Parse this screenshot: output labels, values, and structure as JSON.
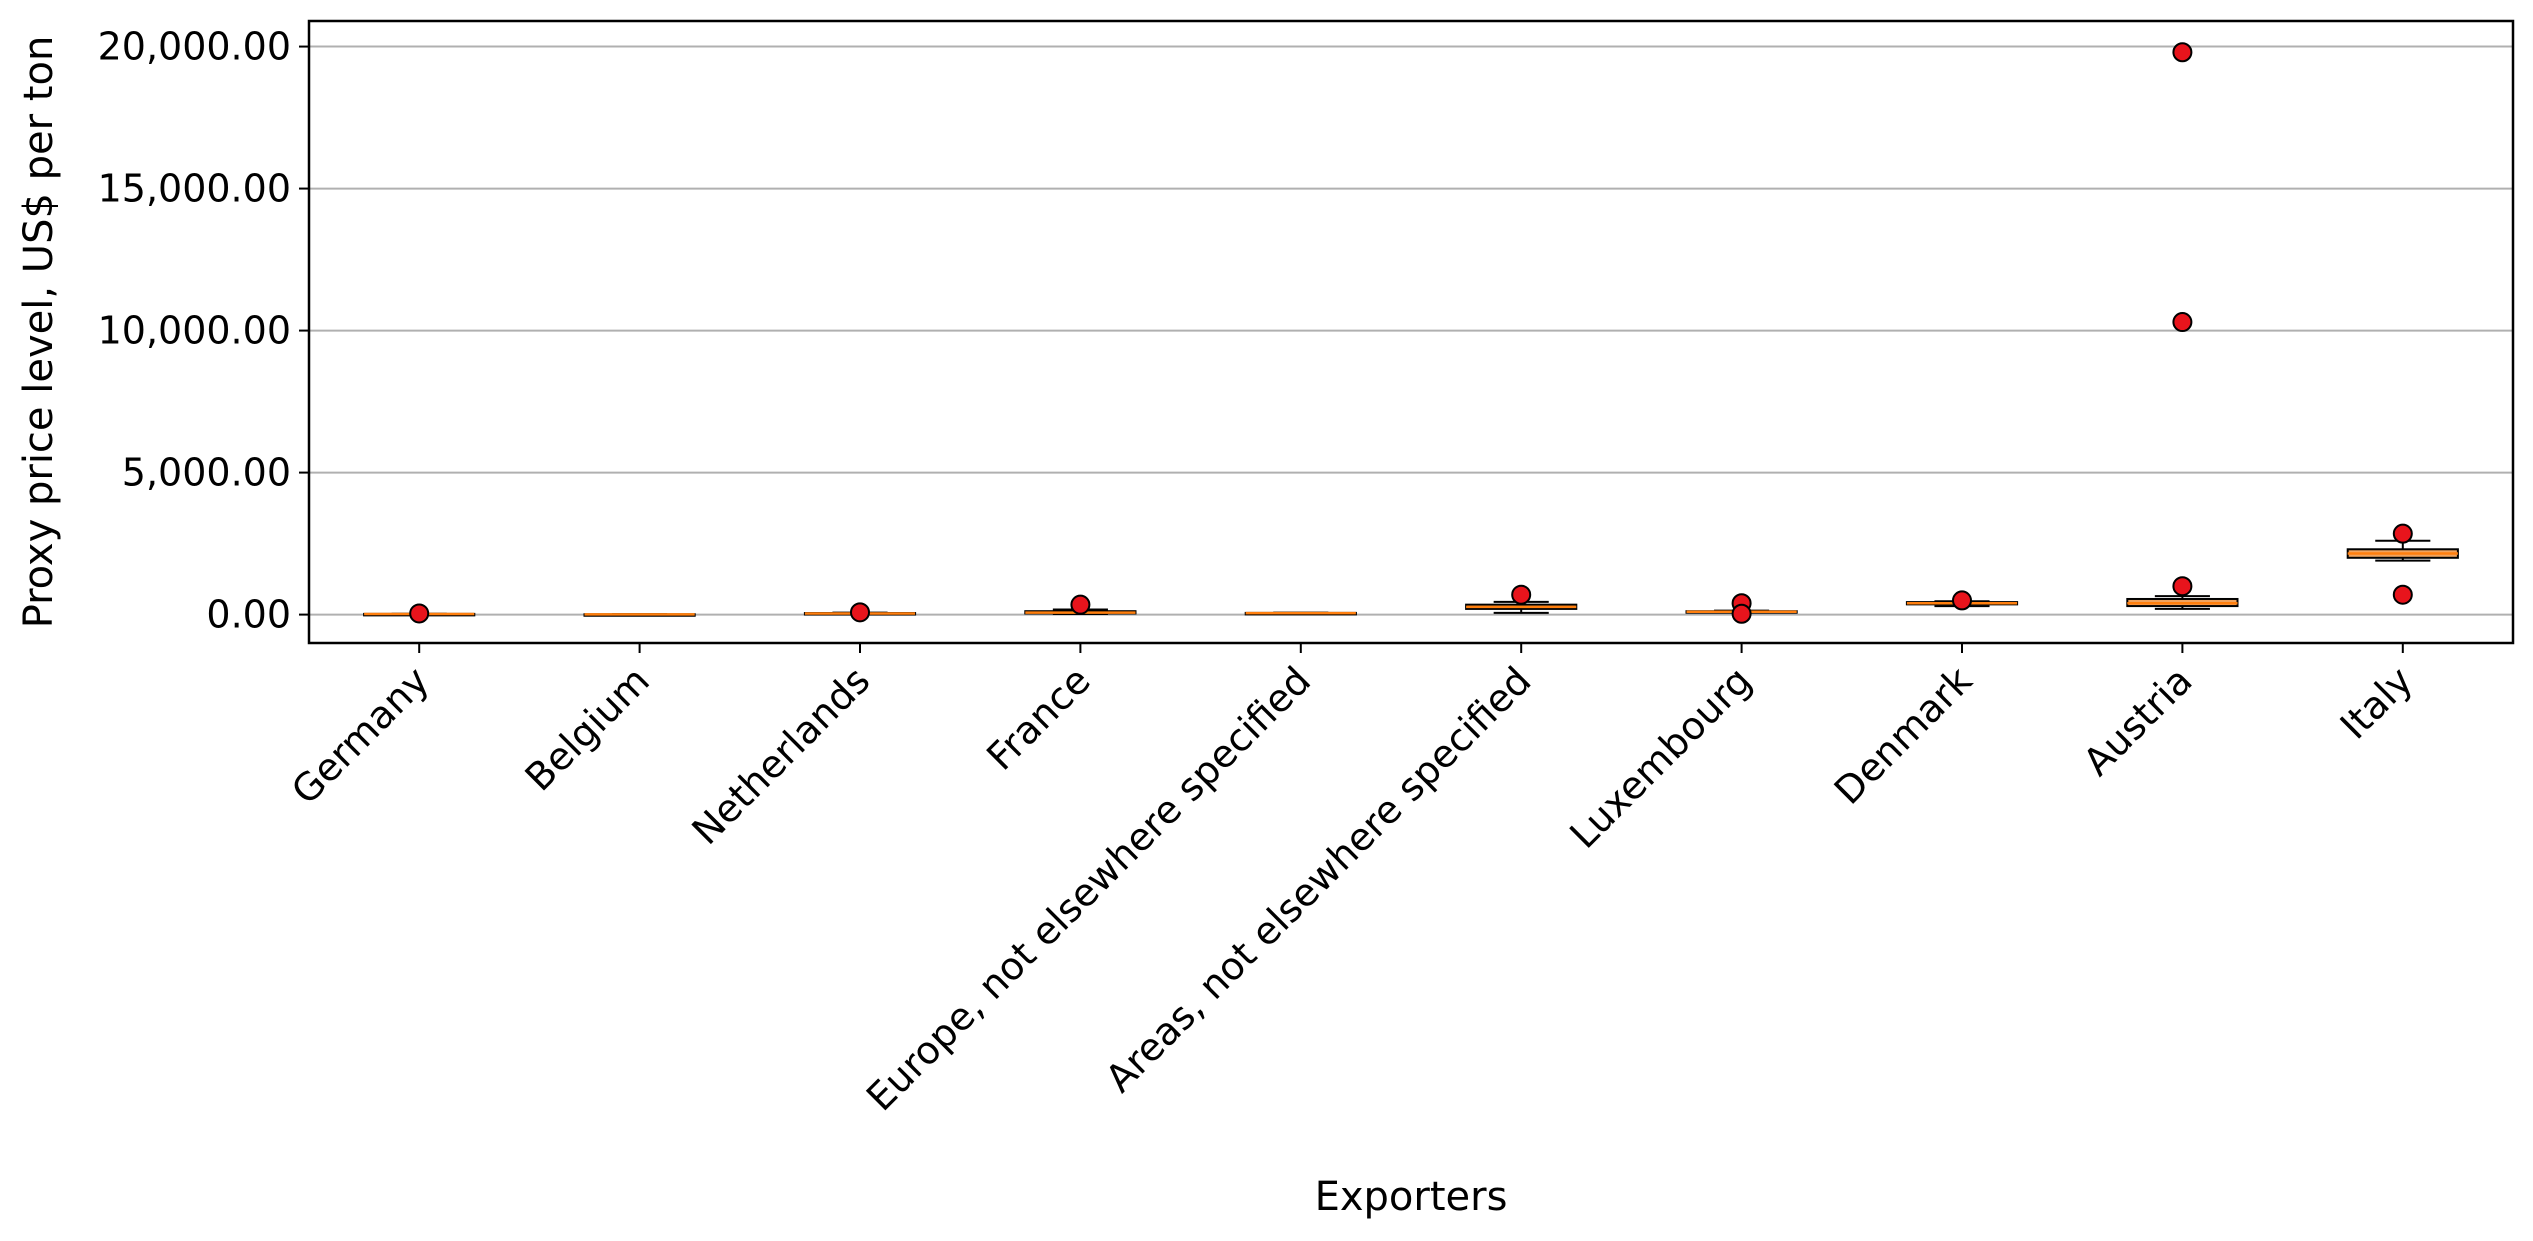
{
  "chart_data": {
    "type": "boxplot",
    "title": "",
    "xlabel": "Exporters",
    "ylabel": "Proxy price level, US$ per ton",
    "ylim": [
      -1000,
      20900
    ],
    "yticks": [
      0,
      5000,
      10000,
      15000,
      20000
    ],
    "ytick_labels": [
      "0.00",
      "5,000.00",
      "10,000.00",
      "15,000.00",
      "20,000.00"
    ],
    "grid": "horizontal",
    "categories": [
      "Germany",
      "Belgium",
      "Netherlands",
      "France",
      "Europe, not elsewhere specified",
      "Areas, not elsewhere specified",
      "Luxembourg",
      "Denmark",
      "Austria",
      "Italy"
    ],
    "boxes": [
      {
        "category": "Germany",
        "whislo": 10,
        "q1": 15,
        "med": 20,
        "q3": 25,
        "whishi": 30,
        "fliers": [
          40
        ]
      },
      {
        "category": "Belgium",
        "whislo": 5,
        "q1": 8,
        "med": 10,
        "q3": 12,
        "whishi": 15,
        "fliers": []
      },
      {
        "category": "Netherlands",
        "whislo": 20,
        "q1": 30,
        "med": 40,
        "q3": 55,
        "whishi": 70,
        "fliers": [
          80
        ]
      },
      {
        "category": "France",
        "whislo": 20,
        "q1": 40,
        "med": 70,
        "q3": 120,
        "whishi": 180,
        "fliers": [
          350
        ]
      },
      {
        "category": "Europe, not elsewhere specified",
        "whislo": 30,
        "q1": 40,
        "med": 50,
        "q3": 60,
        "whishi": 70,
        "fliers": []
      },
      {
        "category": "Areas, not elsewhere specified",
        "whislo": 60,
        "q1": 200,
        "med": 270,
        "q3": 350,
        "whishi": 450,
        "fliers": [
          700
        ]
      },
      {
        "category": "Luxembourg",
        "whislo": 80,
        "q1": 90,
        "med": 100,
        "q3": 120,
        "whishi": 140,
        "fliers": [
          400,
          30
        ]
      },
      {
        "category": "Denmark",
        "whislo": 300,
        "q1": 360,
        "med": 400,
        "q3": 440,
        "whishi": 470,
        "fliers": [
          500
        ]
      },
      {
        "category": "Austria",
        "whislo": 200,
        "q1": 300,
        "med": 400,
        "q3": 550,
        "whishi": 650,
        "fliers": [
          19800,
          10300,
          1000
        ]
      },
      {
        "category": "Italy",
        "whislo": 1900,
        "q1": 2000,
        "med": 2150,
        "q3": 2300,
        "whishi": 2600,
        "fliers": [
          2850,
          700
        ]
      }
    ],
    "colors": {
      "box_fill": "#f0a35e",
      "box_edge": "#000000",
      "median": "#ff7f0e",
      "flier_fill": "#e8141c",
      "flier_edge": "#000000",
      "grid": "#b0b0b0"
    }
  }
}
